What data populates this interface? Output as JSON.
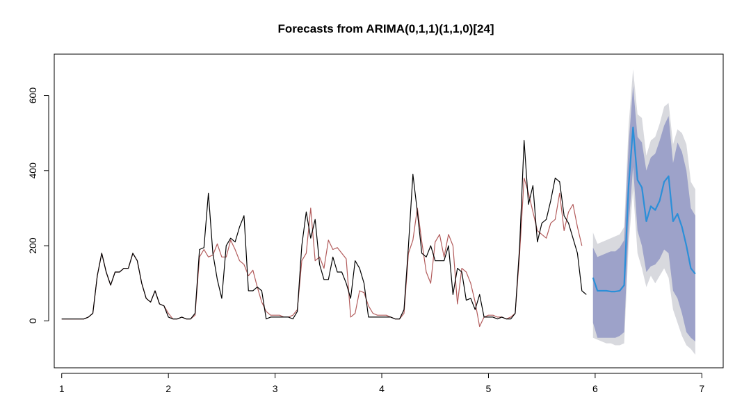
{
  "chart_data": {
    "type": "line",
    "title": "Forecasts from ARIMA(0,1,1)(1,1,0)[24]",
    "xlabel": "",
    "ylabel": "",
    "xlim": [
      0.93,
      7.2
    ],
    "ylim": [
      -125,
      710
    ],
    "x_ticks": [
      1,
      2,
      3,
      4,
      5,
      6,
      7
    ],
    "x_tick_labels": [
      "1",
      "2",
      "3",
      "4",
      "5",
      "6",
      "7"
    ],
    "y_ticks": [
      0,
      200,
      400,
      600
    ],
    "y_tick_labels": [
      "0",
      "200",
      "400",
      "600"
    ],
    "colors": {
      "observed": "#000000",
      "fitted": "#b25b5b",
      "forecast": "#2b8fd8",
      "band80": "#9da2c9",
      "band95": "#d8d9de"
    },
    "series": [
      {
        "key": "observed",
        "x_start": 1.0,
        "x_step": 0.04167,
        "values": [
          5,
          5,
          5,
          5,
          5,
          5,
          10,
          20,
          120,
          180,
          130,
          95,
          130,
          130,
          140,
          140,
          180,
          160,
          100,
          60,
          50,
          80,
          45,
          40,
          10,
          5,
          5,
          10,
          5,
          5,
          20,
          190,
          195,
          340,
          180,
          110,
          60,
          200,
          220,
          210,
          250,
          280,
          80,
          80,
          90,
          80,
          5,
          10,
          10,
          10,
          10,
          10,
          5,
          25,
          200,
          290,
          220,
          270,
          150,
          110,
          110,
          170,
          130,
          130,
          100,
          60,
          160,
          140,
          100,
          10,
          10,
          10,
          10,
          10,
          10,
          5,
          5,
          30,
          200,
          390,
          290,
          180,
          170,
          200,
          160,
          160,
          160,
          200,
          70,
          140,
          130,
          55,
          60,
          30,
          70,
          10,
          10,
          10,
          5,
          10,
          5,
          5,
          20,
          200,
          480,
          310,
          360,
          210,
          260,
          270,
          320,
          380,
          370,
          280,
          260,
          220,
          180,
          80,
          70
        ]
      },
      {
        "key": "fitted",
        "x_start": 1.0,
        "x_step": 0.04167,
        "values": [
          5,
          5,
          5,
          5,
          5,
          5,
          10,
          20,
          120,
          180,
          130,
          95,
          130,
          130,
          140,
          140,
          180,
          160,
          100,
          60,
          50,
          80,
          45,
          40,
          20,
          5,
          5,
          10,
          5,
          5,
          15,
          170,
          190,
          170,
          175,
          205,
          170,
          170,
          215,
          190,
          160,
          150,
          120,
          135,
          90,
          50,
          25,
          15,
          15,
          15,
          10,
          10,
          15,
          30,
          160,
          180,
          300,
          160,
          170,
          140,
          215,
          190,
          195,
          180,
          165,
          10,
          20,
          80,
          75,
          40,
          20,
          15,
          15,
          15,
          10,
          5,
          5,
          20,
          180,
          215,
          300,
          210,
          130,
          100,
          210,
          230,
          170,
          230,
          200,
          45,
          140,
          130,
          100,
          50,
          -15,
          10,
          15,
          15,
          10,
          10,
          5,
          10,
          20,
          180,
          380,
          340,
          290,
          240,
          230,
          220,
          260,
          270,
          340,
          240,
          290,
          310,
          250,
          200
        ]
      },
      {
        "key": "forecast",
        "x_start": 5.98,
        "x_step": 0.04167,
        "values": [
          115,
          80,
          80,
          80,
          78,
          78,
          80,
          95,
          360,
          515,
          375,
          355,
          265,
          305,
          295,
          320,
          370,
          385,
          265,
          285,
          250,
          200,
          140,
          125
        ],
        "lo80": [
          -5,
          -45,
          -45,
          -45,
          -45,
          -45,
          -40,
          -30,
          250,
          410,
          240,
          200,
          130,
          145,
          150,
          165,
          190,
          180,
          80,
          60,
          20,
          -30,
          -45,
          -55
        ],
        "hi80": [
          195,
          170,
          175,
          180,
          185,
          185,
          195,
          215,
          470,
          625,
          490,
          475,
          400,
          435,
          445,
          480,
          520,
          545,
          420,
          475,
          450,
          400,
          300,
          280
        ],
        "lo95": [
          -45,
          -50,
          -55,
          -60,
          -60,
          -65,
          -65,
          -60,
          200,
          350,
          180,
          140,
          90,
          120,
          100,
          120,
          140,
          115,
          30,
          -5,
          -40,
          -65,
          -75,
          -90
        ],
        "hi95": [
          235,
          205,
          210,
          215,
          220,
          225,
          230,
          250,
          520,
          670,
          550,
          540,
          440,
          480,
          490,
          525,
          570,
          580,
          470,
          510,
          500,
          470,
          370,
          350
        ]
      }
    ]
  }
}
